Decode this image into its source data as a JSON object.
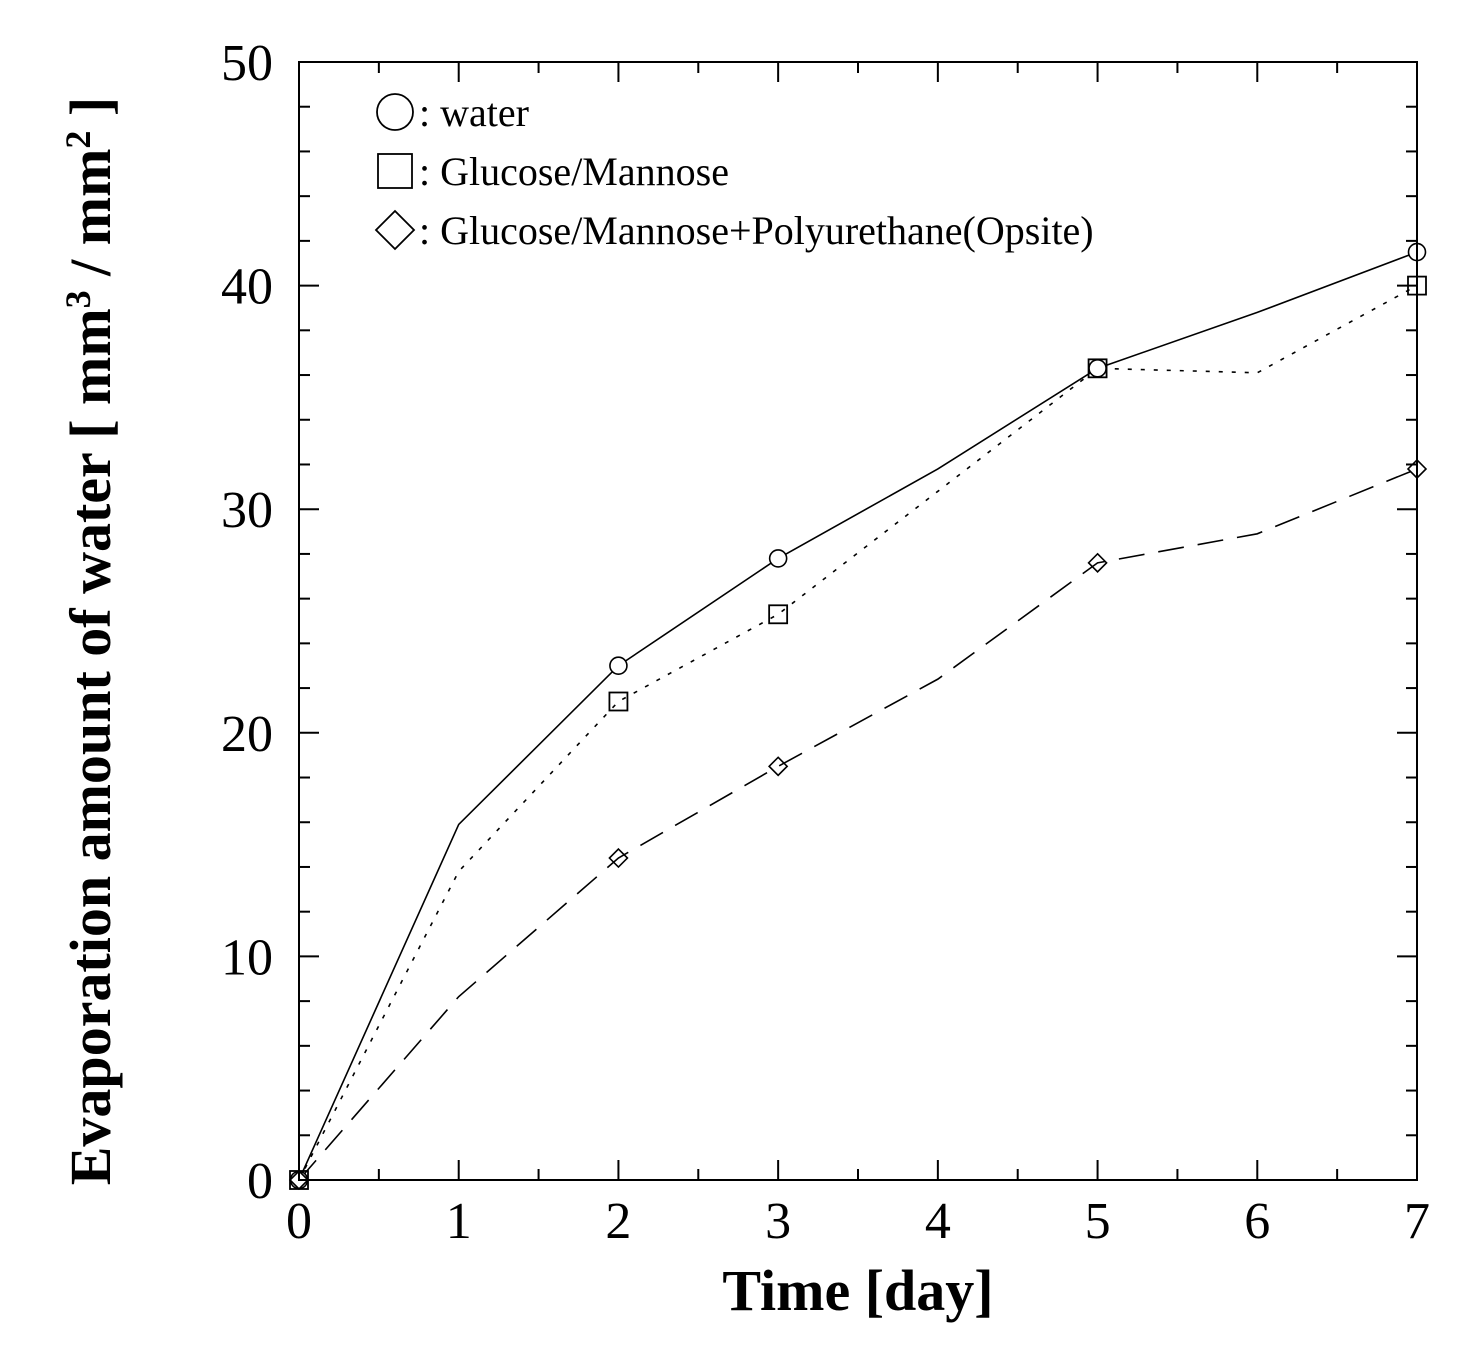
{
  "chart_data": {
    "type": "line",
    "title": "",
    "xlabel": "Time [day]",
    "ylabel": "Evaporation amount of water [ mm",
    "ylabel_sup1": "3",
    "ylabel_mid": " / mm",
    "ylabel_sup2": "2",
    "ylabel_end": " ]",
    "xlim": [
      0,
      7
    ],
    "ylim": [
      0,
      50
    ],
    "xticks": [
      "0",
      "1",
      "2",
      "3",
      "4",
      "5",
      "6",
      "7"
    ],
    "yticks": [
      "0",
      "10",
      "20",
      "30",
      "40",
      "50"
    ],
    "legend_position": "top-left",
    "series": [
      {
        "name": "water",
        "legend_label": ": water",
        "marker": "circle",
        "line_style": "solid",
        "line_x": [
          0,
          1,
          2,
          3,
          4,
          5,
          6,
          7
        ],
        "line_y": [
          0,
          15.9,
          23.0,
          27.8,
          31.8,
          36.3,
          38.8,
          41.5
        ],
        "marker_x": [
          0,
          2,
          3,
          5,
          7
        ],
        "marker_y": [
          0,
          23.0,
          27.8,
          36.3,
          41.5
        ]
      },
      {
        "name": "Glucose/Mannose",
        "legend_label": ": Glucose/Mannose",
        "marker": "square",
        "line_style": "dotted",
        "line_x": [
          0,
          1,
          2,
          3,
          4,
          5,
          6,
          7
        ],
        "line_y": [
          0,
          13.8,
          21.4,
          25.3,
          30.8,
          36.3,
          36.1,
          40.0
        ],
        "marker_x": [
          0,
          2,
          3,
          5,
          7
        ],
        "marker_y": [
          0,
          21.4,
          25.3,
          36.3,
          40.0
        ]
      },
      {
        "name": "Glucose/Mannose+Polyurethane(Opsite)",
        "legend_label": ": Glucose/Mannose+Polyurethane(Opsite)",
        "marker": "diamond",
        "line_style": "dashed",
        "line_x": [
          0,
          1,
          2,
          3,
          4,
          5,
          6,
          7
        ],
        "line_y": [
          0,
          8.2,
          14.4,
          18.5,
          22.4,
          27.6,
          28.9,
          31.8
        ],
        "marker_x": [
          0,
          2,
          3,
          5,
          7
        ],
        "marker_y": [
          0,
          14.4,
          18.5,
          27.6,
          31.8
        ]
      }
    ]
  }
}
